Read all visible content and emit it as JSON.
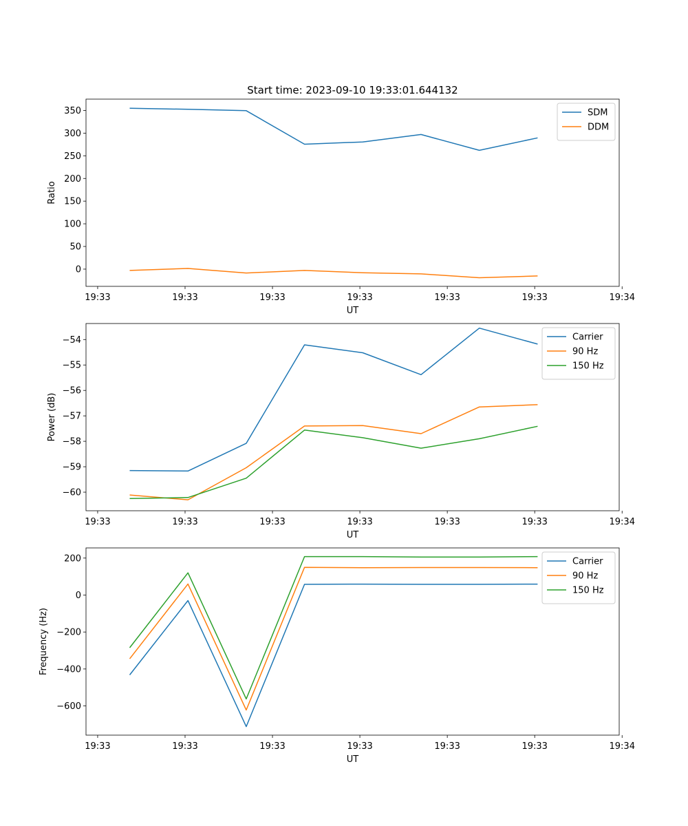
{
  "figure_title": "Start time: 2023-09-10 19:33:01.644132",
  "colors": {
    "blue": "#1f77b4",
    "orange": "#ff7f0e",
    "green": "#2ca02c"
  },
  "chart_data": [
    {
      "type": "line",
      "title": "Start time: 2023-09-10 19:33:01.644132",
      "xlabel": "UT",
      "ylabel": "Ratio",
      "x": [
        1,
        2,
        3,
        4,
        5,
        6,
        7,
        8
      ],
      "xlim": [
        0.25,
        9.4
      ],
      "xticks": [
        0.45,
        1.95,
        3.45,
        4.95,
        6.45,
        7.95,
        9.45
      ],
      "xtick_labels": [
        "19:33",
        "19:33",
        "19:33",
        "19:33",
        "19:33",
        "19:33",
        "19:34"
      ],
      "ylim": [
        -38,
        375
      ],
      "yticks": [
        0,
        50,
        100,
        150,
        200,
        250,
        300,
        350
      ],
      "ytick_labels": [
        "0",
        "50",
        "100",
        "150",
        "200",
        "250",
        "300",
        "350"
      ],
      "legend": "top-right",
      "series": [
        {
          "name": "SDM",
          "color": "#1f77b4",
          "values": [
            355,
            352.5,
            349.5,
            275.5,
            280.5,
            297,
            262,
            289.5
          ]
        },
        {
          "name": "DDM",
          "color": "#ff7f0e",
          "values": [
            -3,
            1.5,
            -8.5,
            -3,
            -8,
            -10.5,
            -19,
            -15
          ]
        }
      ]
    },
    {
      "type": "line",
      "xlabel": "UT",
      "ylabel": "Power (dB)",
      "x": [
        1,
        2,
        3,
        4,
        5,
        6,
        7,
        8
      ],
      "xlim": [
        0.25,
        9.4
      ],
      "xticks": [
        0.45,
        1.95,
        3.45,
        4.95,
        6.45,
        7.95,
        9.45
      ],
      "xtick_labels": [
        "19:33",
        "19:33",
        "19:33",
        "19:33",
        "19:33",
        "19:33",
        "19:34"
      ],
      "ylim": [
        -60.73,
        -53.37
      ],
      "yticks": [
        -60,
        -59,
        -58,
        -57,
        -56,
        -55,
        -54
      ],
      "ytick_labels": [
        "−60",
        "−59",
        "−58",
        "−57",
        "−56",
        "−55",
        "−54"
      ],
      "legend": "top-right",
      "series": [
        {
          "name": "Carrier",
          "color": "#1f77b4",
          "values": [
            -59.15,
            -59.17,
            -58.08,
            -54.21,
            -54.52,
            -55.38,
            -53.55,
            -54.18
          ]
        },
        {
          "name": "90 Hz",
          "color": "#ff7f0e",
          "values": [
            -60.11,
            -60.3,
            -59.04,
            -57.4,
            -57.38,
            -57.7,
            -56.65,
            -56.56
          ]
        },
        {
          "name": "150 Hz",
          "color": "#2ca02c",
          "values": [
            -60.25,
            -60.21,
            -59.45,
            -57.56,
            -57.86,
            -58.27,
            -57.9,
            -57.41
          ]
        }
      ]
    },
    {
      "type": "line",
      "xlabel": "UT",
      "ylabel": "Frequency (Hz)",
      "x": [
        1,
        2,
        3,
        4,
        5,
        6,
        7,
        8
      ],
      "xlim": [
        0.25,
        9.4
      ],
      "xticks": [
        0.45,
        1.95,
        3.45,
        4.95,
        6.45,
        7.95,
        9.45
      ],
      "xtick_labels": [
        "19:33",
        "19:33",
        "19:33",
        "19:33",
        "19:33",
        "19:33",
        "19:34"
      ],
      "ylim": [
        -758,
        255
      ],
      "yticks": [
        -600,
        -400,
        -200,
        0,
        200
      ],
      "ytick_labels": [
        "−600",
        "−400",
        "−200",
        "0",
        "200"
      ],
      "legend": "top-right",
      "series": [
        {
          "name": "Carrier",
          "color": "#1f77b4",
          "values": [
            -432,
            -30,
            -712,
            58,
            59,
            58,
            58,
            59
          ]
        },
        {
          "name": "90 Hz",
          "color": "#ff7f0e",
          "values": [
            -345,
            60,
            -622,
            150,
            148,
            149,
            149,
            148
          ]
        },
        {
          "name": "150 Hz",
          "color": "#2ca02c",
          "values": [
            -285,
            120,
            -562,
            208,
            208,
            206,
            206,
            208
          ]
        }
      ]
    }
  ]
}
